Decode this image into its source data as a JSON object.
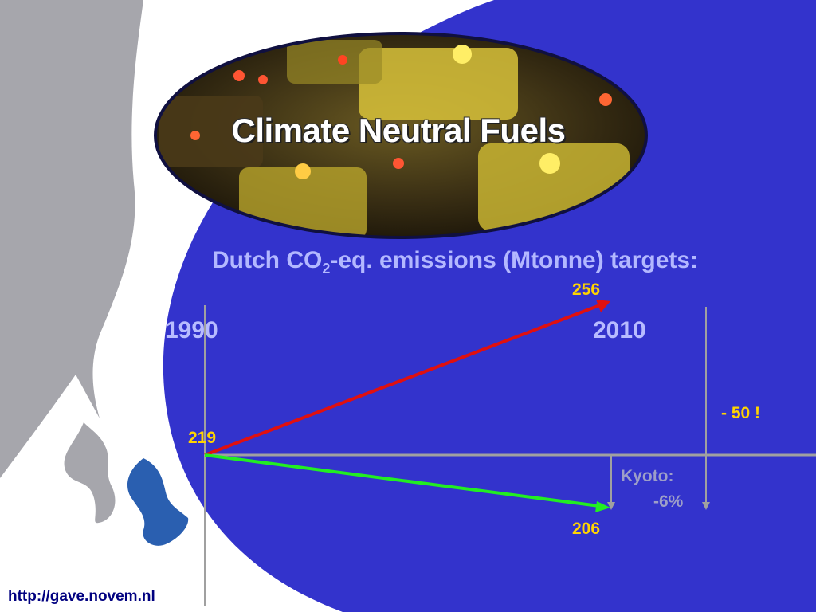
{
  "slide": {
    "title": "Climate Neutral Fuels",
    "subtitle_prefix": "Dutch CO",
    "subtitle_sub": "2",
    "subtitle_suffix": "-eq. emissions (Mtonne) targets:",
    "footer_url": "http://gave.novem.nl"
  },
  "colors": {
    "background_blue": "#3333cc",
    "rising_arrow": "#e01010",
    "falling_arrow": "#22ee22",
    "value_label": "#ffd400",
    "axis_gray": "#a0a0a0"
  },
  "chart_data": {
    "type": "line",
    "x": [
      "1990",
      "2010"
    ],
    "start_value": 219,
    "series": [
      {
        "values": [
          219,
          256
        ]
      },
      {
        "values": [
          219,
          206
        ]
      }
    ],
    "annotations": {
      "kyoto_label": "Kyoto:",
      "kyoto_value": "-6%",
      "gap_label": "- 50 !"
    }
  }
}
